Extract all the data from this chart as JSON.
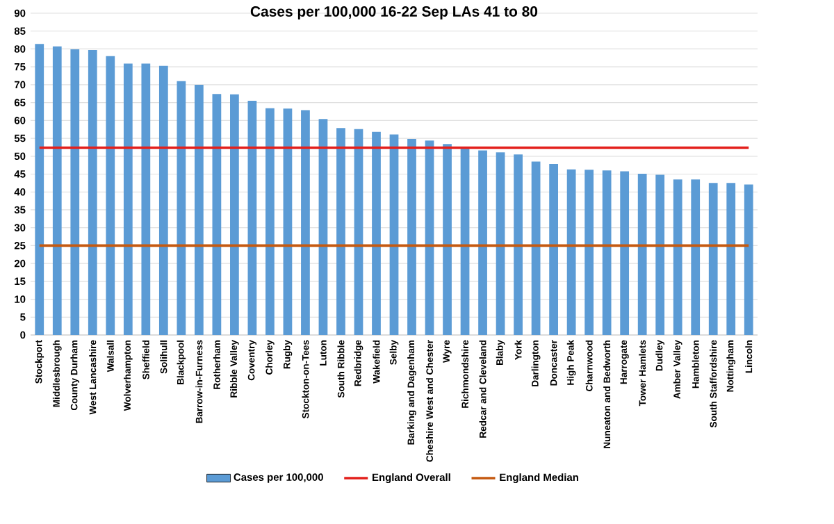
{
  "chart_data": {
    "type": "bar",
    "title": "Cases per 100,000 16-22 Sep LAs 41 to 80",
    "categories": [
      "Stockport",
      "Middlesbrough",
      "County Durham",
      "West Lancashire",
      "Walsall",
      "Wolverhampton",
      "Sheffield",
      "Solihull",
      "Blackpool",
      "Barrow-in-Furness",
      "Rotherham",
      "Ribble Valley",
      "Coventry",
      "Chorley",
      "Rugby",
      "Stockton-on-Tees",
      "Luton",
      "South Ribble",
      "Redbridge",
      "Wakefield",
      "Selby",
      "Barking and Dagenham",
      "Cheshire West and Chester",
      "Wyre",
      "Richmondshire",
      "Redcar and Cleveland",
      "Blaby",
      "York",
      "Darlington",
      "Doncaster",
      "High Peak",
      "Charnwood",
      "Nuneaton and Bedworth",
      "Harrogate",
      "Tower Hamlets",
      "Dudley",
      "Amber Valley",
      "Hambleton",
      "South Staffordshire",
      "Nottingham",
      "Lincoln"
    ],
    "series": [
      {
        "name": "Cases per 100,000",
        "color": "#5b9bd5",
        "values": [
          81.4,
          80.7,
          79.9,
          79.7,
          78.0,
          75.9,
          75.9,
          75.3,
          71.0,
          70.0,
          67.4,
          67.3,
          65.5,
          63.4,
          63.3,
          62.9,
          60.4,
          57.9,
          57.6,
          56.8,
          56.1,
          54.8,
          54.4,
          53.4,
          52.5,
          51.6,
          51.1,
          50.5,
          48.5,
          47.8,
          46.3,
          46.2,
          46.0,
          45.8,
          45.1,
          44.8,
          43.5,
          43.5,
          42.5,
          42.5,
          42.1
        ]
      },
      {
        "name": "England Overall",
        "type": "line",
        "color": "#e3201c",
        "values": [
          52.4,
          52.4,
          52.4,
          52.4,
          52.4,
          52.4,
          52.4,
          52.4,
          52.4,
          52.4,
          52.4,
          52.4,
          52.4,
          52.4,
          52.4,
          52.4,
          52.4,
          52.4,
          52.4,
          52.4,
          52.4,
          52.4,
          52.4,
          52.4,
          52.4,
          52.4,
          52.4,
          52.4,
          52.4,
          52.4,
          52.4,
          52.4,
          52.4,
          52.4,
          52.4,
          52.4,
          52.4,
          52.4,
          52.4,
          52.4,
          52.4
        ]
      },
      {
        "name": "England Median",
        "type": "line",
        "color": "#c55a11",
        "values": [
          25,
          25,
          25,
          25,
          25,
          25,
          25,
          25,
          25,
          25,
          25,
          25,
          25,
          25,
          25,
          25,
          25,
          25,
          25,
          25,
          25,
          25,
          25,
          25,
          25,
          25,
          25,
          25,
          25,
          25,
          25,
          25,
          25,
          25,
          25,
          25,
          25,
          25,
          25,
          25,
          25
        ]
      }
    ],
    "ylim": [
      0,
      90
    ],
    "yticks": [
      0,
      5,
      10,
      15,
      20,
      25,
      30,
      35,
      40,
      45,
      50,
      55,
      60,
      65,
      70,
      75,
      80,
      85,
      90
    ],
    "grid": "y",
    "legend": "bottom"
  }
}
